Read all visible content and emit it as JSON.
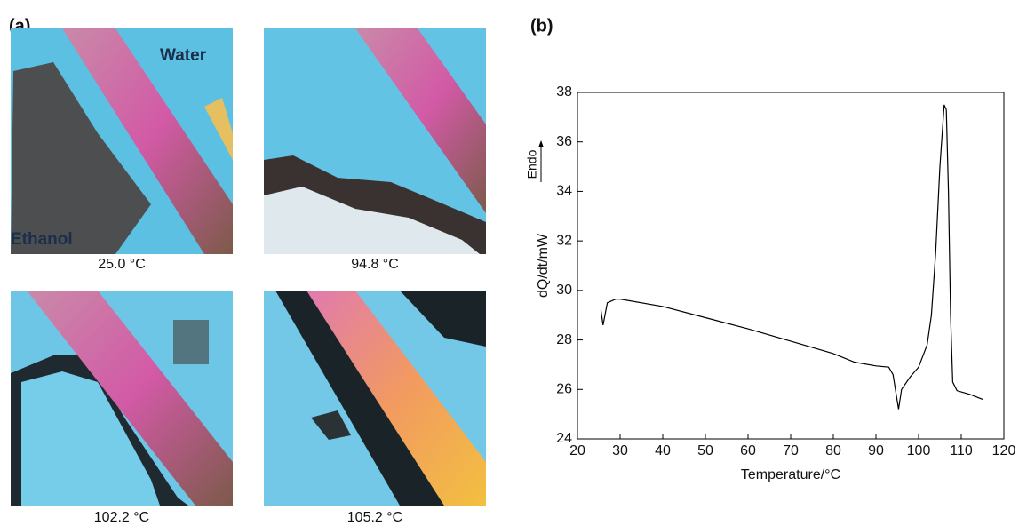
{
  "panel_a": {
    "label": "(a)",
    "images": [
      {
        "caption": "25.0 °C",
        "annotations": [
          "Water",
          "Ethanol"
        ]
      },
      {
        "caption": "94.8 °C"
      },
      {
        "caption": "102.2 °C"
      },
      {
        "caption": "105.2 °C"
      }
    ]
  },
  "panel_b": {
    "label": "(b)"
  },
  "chart_data": {
    "type": "line",
    "x_label": "Temperature/°C",
    "y_label": "dQ/dt/mW",
    "annotation": "Endo",
    "x": [
      25.5,
      26,
      27,
      29,
      30,
      40,
      50,
      60,
      70,
      80,
      85,
      90,
      93,
      94,
      95.3,
      96,
      98,
      100,
      102,
      103,
      104,
      105,
      106,
      106.5,
      107,
      107.5,
      108,
      109,
      112,
      115
    ],
    "values": [
      29.2,
      28.6,
      29.5,
      29.65,
      29.65,
      29.35,
      28.9,
      28.45,
      27.95,
      27.45,
      27.1,
      26.95,
      26.9,
      26.6,
      25.2,
      26.0,
      26.5,
      26.9,
      27.8,
      29,
      31.5,
      35,
      37.5,
      37.3,
      34,
      29,
      26.3,
      25.95,
      25.8,
      25.6
    ],
    "color": "#000000",
    "xlim": [
      20,
      120
    ],
    "xticks": [
      20,
      30,
      40,
      50,
      60,
      70,
      80,
      90,
      100,
      110,
      120
    ],
    "ylim": [
      24,
      38
    ],
    "yticks": [
      24,
      26,
      28,
      30,
      32,
      34,
      36,
      38
    ]
  }
}
